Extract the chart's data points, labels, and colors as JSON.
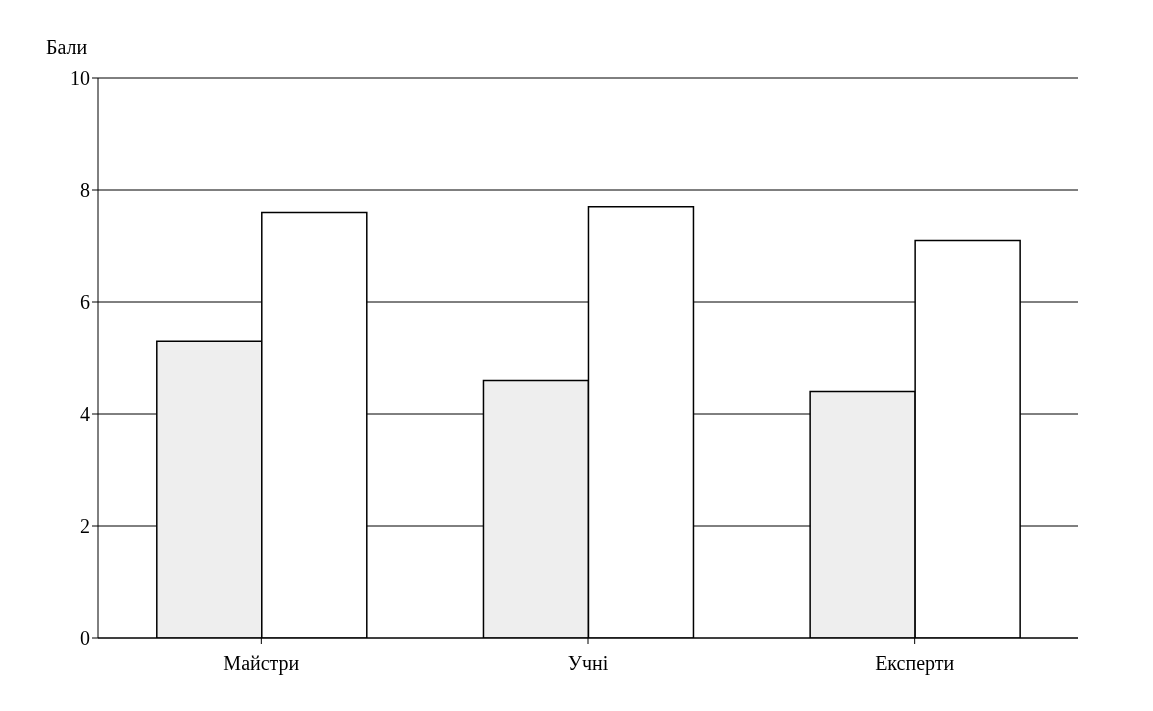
{
  "chart_data": {
    "type": "bar",
    "ylabel": "Бали",
    "categories": [
      "Майстри",
      "Учні",
      "Експерти"
    ],
    "series": [
      {
        "color": "#eeeeee",
        "values": [
          5.3,
          4.6,
          4.4
        ]
      },
      {
        "color": "#ffffff",
        "values": [
          7.6,
          7.7,
          7.1
        ]
      }
    ],
    "ylim": [
      0,
      10
    ],
    "yticks": [
      0,
      2,
      4,
      6,
      8,
      10
    ],
    "grid": "y",
    "legend": false
  }
}
